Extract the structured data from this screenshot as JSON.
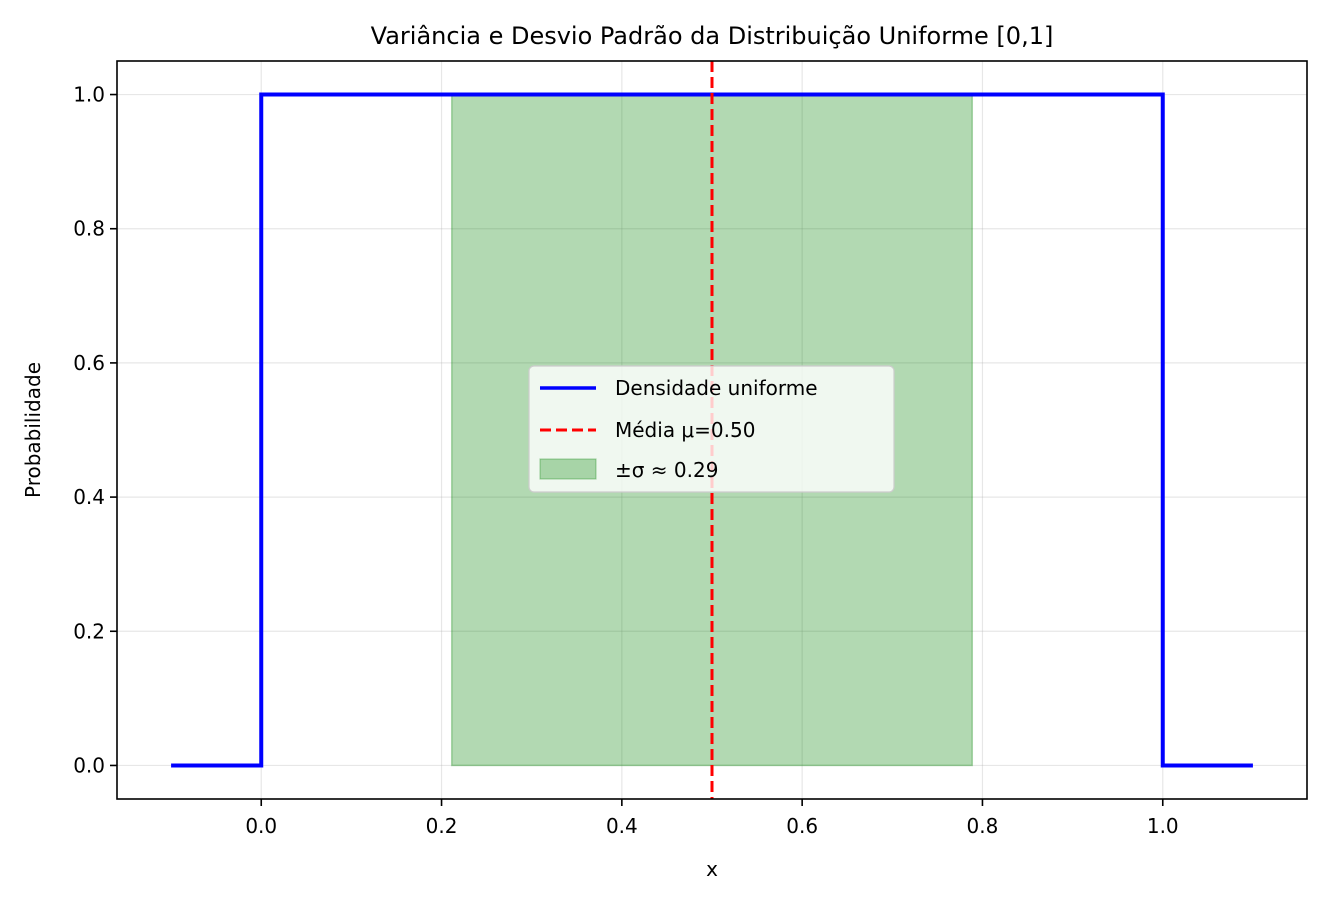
{
  "chart_data": {
    "type": "line",
    "title": "Variância e Desvio Padrão da Distribuição Uniforme [0,1]",
    "xlabel": "x",
    "ylabel": "Probabilidade",
    "xlim": [
      -0.16,
      1.16
    ],
    "ylim": [
      -0.05,
      1.05
    ],
    "xticks": [
      0.0,
      0.2,
      0.4,
      0.6,
      0.8,
      1.0
    ],
    "xtick_labels": [
      "0.0",
      "0.2",
      "0.4",
      "0.6",
      "0.8",
      "1.0"
    ],
    "yticks": [
      0.0,
      0.2,
      0.4,
      0.6,
      0.8,
      1.0
    ],
    "ytick_labels": [
      "0.0",
      "0.2",
      "0.4",
      "0.6",
      "0.8",
      "1.0"
    ],
    "grid": true,
    "legend_position": "center",
    "series": [
      {
        "name": "Densidade uniforme",
        "kind": "line",
        "color": "#0000ff",
        "x": [
          -0.1,
          0.0,
          0.0,
          1.0,
          1.0,
          1.1
        ],
        "y": [
          0,
          0,
          1,
          1,
          0,
          0
        ]
      },
      {
        "name": "Média μ=0.50",
        "kind": "vline",
        "color": "#ff0000",
        "dash": true,
        "x": 0.5
      },
      {
        "name": "±σ ≈ 0.29",
        "kind": "band",
        "color": "#008000",
        "x_range": [
          0.2113,
          0.7887
        ],
        "y_range": [
          0,
          1
        ]
      }
    ]
  }
}
